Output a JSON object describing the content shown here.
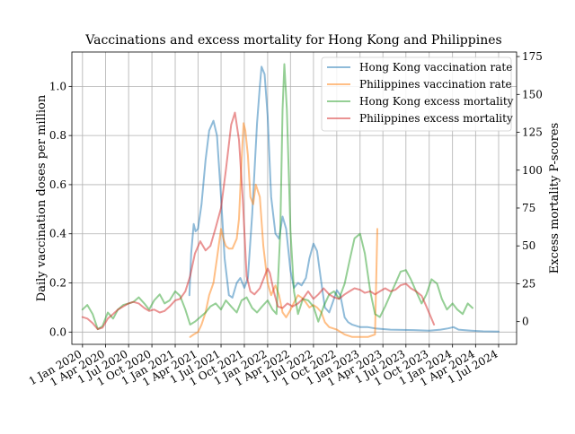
{
  "chart_data": {
    "type": "line",
    "title": "Vaccinations and excess mortality for Hong Kong and Philippines",
    "ylabel_left": "Daily vaccination doses per million",
    "ylabel_right": "Excess mortality P-scores",
    "xlabel": "",
    "grid": true,
    "legend_position": "top-right",
    "x_ticks": [
      "2020-01-01",
      "2020-04-01",
      "2020-07-01",
      "2020-10-01",
      "2021-01-01",
      "2021-04-01",
      "2021-07-01",
      "2021-10-01",
      "2022-01-01",
      "2022-04-01",
      "2022-07-01",
      "2022-10-01",
      "2023-01-01",
      "2023-04-01",
      "2023-07-01",
      "2023-10-01",
      "2024-01-01",
      "2024-04-01",
      "2024-07-01"
    ],
    "x_tick_labels": [
      "1 Jan 2020",
      "1 Apr 2020",
      "1 Jul 2020",
      "1 Oct 2020",
      "1 Jan 2021",
      "1 Apr 2021",
      "1 Jul 2021",
      "1 Oct 2021",
      "1 Jan 2022",
      "1 Apr 2022",
      "1 Jul 2022",
      "1 Oct 2022",
      "1 Jan 2023",
      "1 Apr 2023",
      "1 Jul 2023",
      "1 Oct 2023",
      "1 Jan 2024",
      "1 Apr 2024",
      "1 Jul 2024"
    ],
    "xlim": [
      "2019-11-20",
      "2024-09-10"
    ],
    "y_left": {
      "lim": [
        -0.05,
        1.14
      ],
      "ticks": [
        0.0,
        0.2,
        0.4,
        0.6,
        0.8,
        1.0
      ],
      "tick_labels": [
        "0.0",
        "0.2",
        "0.4",
        "0.6",
        "0.8",
        "1.0"
      ]
    },
    "y_right": {
      "lim": [
        -15,
        178
      ],
      "ticks": [
        0,
        25,
        50,
        75,
        100,
        125,
        150,
        175
      ],
      "tick_labels": [
        "0",
        "25",
        "50",
        "75",
        "100",
        "125",
        "150",
        "175"
      ]
    },
    "series": [
      {
        "name": "Hong Kong vaccination rate",
        "axis": "left",
        "color": "#1f77b4",
        "points": [
          [
            "2021-02-26",
            0.15
          ],
          [
            "2021-03-05",
            0.32
          ],
          [
            "2021-03-15",
            0.44
          ],
          [
            "2021-03-22",
            0.41
          ],
          [
            "2021-04-01",
            0.42
          ],
          [
            "2021-04-15",
            0.52
          ],
          [
            "2021-05-01",
            0.7
          ],
          [
            "2021-05-15",
            0.82
          ],
          [
            "2021-06-01",
            0.86
          ],
          [
            "2021-06-15",
            0.8
          ],
          [
            "2021-07-01",
            0.55
          ],
          [
            "2021-07-15",
            0.3
          ],
          [
            "2021-08-01",
            0.15
          ],
          [
            "2021-08-15",
            0.14
          ],
          [
            "2021-09-01",
            0.2
          ],
          [
            "2021-09-15",
            0.22
          ],
          [
            "2021-10-01",
            0.18
          ],
          [
            "2021-10-15",
            0.22
          ],
          [
            "2021-11-01",
            0.48
          ],
          [
            "2021-11-20",
            0.85
          ],
          [
            "2021-12-01",
            1.0
          ],
          [
            "2021-12-08",
            1.08
          ],
          [
            "2021-12-20",
            1.05
          ],
          [
            "2022-01-01",
            0.88
          ],
          [
            "2022-01-15",
            0.55
          ],
          [
            "2022-02-01",
            0.4
          ],
          [
            "2022-02-15",
            0.38
          ],
          [
            "2022-03-01",
            0.47
          ],
          [
            "2022-03-15",
            0.42
          ],
          [
            "2022-04-01",
            0.25
          ],
          [
            "2022-04-15",
            0.18
          ],
          [
            "2022-05-01",
            0.2
          ],
          [
            "2022-05-15",
            0.19
          ],
          [
            "2022-06-01",
            0.22
          ],
          [
            "2022-06-15",
            0.3
          ],
          [
            "2022-07-01",
            0.36
          ],
          [
            "2022-07-15",
            0.33
          ],
          [
            "2022-08-01",
            0.2
          ],
          [
            "2022-08-15",
            0.1
          ],
          [
            "2022-09-01",
            0.08
          ],
          [
            "2022-09-15",
            0.12
          ],
          [
            "2022-10-01",
            0.17
          ],
          [
            "2022-10-15",
            0.15
          ],
          [
            "2022-11-01",
            0.06
          ],
          [
            "2022-11-15",
            0.04
          ],
          [
            "2022-12-01",
            0.03
          ],
          [
            "2023-01-01",
            0.02
          ],
          [
            "2023-02-01",
            0.02
          ],
          [
            "2023-03-01",
            0.015
          ],
          [
            "2023-05-01",
            0.01
          ],
          [
            "2023-08-01",
            0.008
          ],
          [
            "2023-10-01",
            0.006
          ],
          [
            "2023-11-15",
            0.01
          ],
          [
            "2023-12-15",
            0.015
          ],
          [
            "2024-01-05",
            0.02
          ],
          [
            "2024-01-25",
            0.01
          ],
          [
            "2024-02-15",
            0.008
          ],
          [
            "2024-03-15",
            0.006
          ],
          [
            "2024-05-01",
            0.003
          ],
          [
            "2024-07-01",
            0.002
          ]
        ]
      },
      {
        "name": "Philippines vaccination rate",
        "axis": "left",
        "color": "#ff7f0e",
        "points": [
          [
            "2021-03-01",
            -0.02
          ],
          [
            "2021-03-15",
            -0.01
          ],
          [
            "2021-04-01",
            0.0
          ],
          [
            "2021-04-15",
            0.03
          ],
          [
            "2021-05-01",
            0.08
          ],
          [
            "2021-05-15",
            0.15
          ],
          [
            "2021-06-01",
            0.2
          ],
          [
            "2021-06-15",
            0.3
          ],
          [
            "2021-07-01",
            0.42
          ],
          [
            "2021-07-10",
            0.38
          ],
          [
            "2021-07-20",
            0.35
          ],
          [
            "2021-08-01",
            0.34
          ],
          [
            "2021-08-15",
            0.34
          ],
          [
            "2021-09-01",
            0.38
          ],
          [
            "2021-09-10",
            0.46
          ],
          [
            "2021-09-20",
            0.7
          ],
          [
            "2021-09-28",
            0.85
          ],
          [
            "2021-10-05",
            0.82
          ],
          [
            "2021-10-15",
            0.72
          ],
          [
            "2021-10-25",
            0.55
          ],
          [
            "2021-11-05",
            0.52
          ],
          [
            "2021-11-15",
            0.6
          ],
          [
            "2021-12-01",
            0.55
          ],
          [
            "2021-12-15",
            0.35
          ],
          [
            "2022-01-01",
            0.2
          ],
          [
            "2022-01-15",
            0.15
          ],
          [
            "2022-02-01",
            0.19
          ],
          [
            "2022-02-15",
            0.15
          ],
          [
            "2022-03-01",
            0.08
          ],
          [
            "2022-03-15",
            0.06
          ],
          [
            "2022-04-01",
            0.09
          ],
          [
            "2022-04-15",
            0.12
          ],
          [
            "2022-05-01",
            0.15
          ],
          [
            "2022-05-15",
            0.14
          ],
          [
            "2022-06-01",
            0.12
          ],
          [
            "2022-06-15",
            0.1
          ],
          [
            "2022-07-01",
            0.11
          ],
          [
            "2022-07-15",
            0.1
          ],
          [
            "2022-08-01",
            0.08
          ],
          [
            "2022-08-15",
            0.04
          ],
          [
            "2022-09-01",
            0.02
          ],
          [
            "2022-10-01",
            0.01
          ],
          [
            "2022-11-01",
            -0.01
          ],
          [
            "2022-12-01",
            -0.02
          ],
          [
            "2023-01-01",
            -0.02
          ],
          [
            "2023-02-01",
            -0.02
          ],
          [
            "2023-03-01",
            -0.01
          ],
          [
            "2023-03-10",
            0.42
          ]
        ]
      },
      {
        "name": "Hong Kong excess mortality",
        "axis": "right",
        "color": "#2ca02c",
        "points": [
          [
            "2020-01-01",
            8
          ],
          [
            "2020-01-20",
            11
          ],
          [
            "2020-02-10",
            5
          ],
          [
            "2020-03-01",
            -5
          ],
          [
            "2020-03-20",
            -3
          ],
          [
            "2020-04-10",
            6
          ],
          [
            "2020-05-01",
            2
          ],
          [
            "2020-05-20",
            8
          ],
          [
            "2020-06-10",
            11
          ],
          [
            "2020-07-01",
            12
          ],
          [
            "2020-07-20",
            13
          ],
          [
            "2020-08-10",
            16
          ],
          [
            "2020-09-01",
            12
          ],
          [
            "2020-09-20",
            8
          ],
          [
            "2020-10-10",
            14
          ],
          [
            "2020-11-01",
            18
          ],
          [
            "2020-11-20",
            12
          ],
          [
            "2020-12-10",
            14
          ],
          [
            "2021-01-01",
            20
          ],
          [
            "2021-01-20",
            17
          ],
          [
            "2021-02-10",
            8
          ],
          [
            "2021-03-01",
            -2
          ],
          [
            "2021-03-20",
            0
          ],
          [
            "2021-04-10",
            3
          ],
          [
            "2021-05-01",
            6
          ],
          [
            "2021-05-20",
            10
          ],
          [
            "2021-06-10",
            12
          ],
          [
            "2021-07-01",
            8
          ],
          [
            "2021-07-20",
            14
          ],
          [
            "2021-08-10",
            10
          ],
          [
            "2021-09-01",
            6
          ],
          [
            "2021-09-20",
            14
          ],
          [
            "2021-10-10",
            16
          ],
          [
            "2021-11-01",
            9
          ],
          [
            "2021-11-20",
            6
          ],
          [
            "2021-12-10",
            10
          ],
          [
            "2022-01-01",
            14
          ],
          [
            "2022-01-20",
            8
          ],
          [
            "2022-02-05",
            5
          ],
          [
            "2022-02-20",
            60
          ],
          [
            "2022-03-01",
            140
          ],
          [
            "2022-03-08",
            170
          ],
          [
            "2022-03-18",
            140
          ],
          [
            "2022-04-01",
            60
          ],
          [
            "2022-04-15",
            20
          ],
          [
            "2022-05-01",
            5
          ],
          [
            "2022-05-20",
            15
          ],
          [
            "2022-06-10",
            14
          ],
          [
            "2022-07-01",
            10
          ],
          [
            "2022-07-20",
            0
          ],
          [
            "2022-08-10",
            10
          ],
          [
            "2022-09-01",
            18
          ],
          [
            "2022-09-20",
            20
          ],
          [
            "2022-10-10",
            15
          ],
          [
            "2022-11-01",
            25
          ],
          [
            "2022-11-20",
            40
          ],
          [
            "2022-12-10",
            55
          ],
          [
            "2023-01-01",
            58
          ],
          [
            "2023-01-20",
            45
          ],
          [
            "2023-02-10",
            20
          ],
          [
            "2023-03-01",
            5
          ],
          [
            "2023-03-20",
            3
          ],
          [
            "2023-04-10",
            10
          ],
          [
            "2023-05-01",
            18
          ],
          [
            "2023-05-20",
            25
          ],
          [
            "2023-06-10",
            33
          ],
          [
            "2023-07-01",
            34
          ],
          [
            "2023-07-20",
            28
          ],
          [
            "2023-08-10",
            20
          ],
          [
            "2023-09-01",
            12
          ],
          [
            "2023-09-20",
            18
          ],
          [
            "2023-10-10",
            28
          ],
          [
            "2023-11-01",
            25
          ],
          [
            "2023-11-20",
            15
          ],
          [
            "2023-12-10",
            8
          ],
          [
            "2024-01-01",
            12
          ],
          [
            "2024-01-20",
            8
          ],
          [
            "2024-02-10",
            5
          ],
          [
            "2024-03-01",
            12
          ],
          [
            "2024-03-20",
            9
          ]
        ]
      },
      {
        "name": "Philippines excess mortality",
        "axis": "right",
        "color": "#d62728",
        "points": [
          [
            "2020-01-01",
            3
          ],
          [
            "2020-01-20",
            2
          ],
          [
            "2020-02-10",
            -1
          ],
          [
            "2020-03-01",
            -5
          ],
          [
            "2020-03-20",
            -4
          ],
          [
            "2020-04-10",
            2
          ],
          [
            "2020-05-01",
            5
          ],
          [
            "2020-05-20",
            8
          ],
          [
            "2020-06-10",
            10
          ],
          [
            "2020-07-01",
            12
          ],
          [
            "2020-07-20",
            13
          ],
          [
            "2020-08-10",
            12
          ],
          [
            "2020-09-01",
            9
          ],
          [
            "2020-09-20",
            7
          ],
          [
            "2020-10-10",
            8
          ],
          [
            "2020-11-01",
            6
          ],
          [
            "2020-11-20",
            7
          ],
          [
            "2020-12-10",
            10
          ],
          [
            "2021-01-01",
            14
          ],
          [
            "2021-01-20",
            15
          ],
          [
            "2021-02-10",
            20
          ],
          [
            "2021-03-01",
            30
          ],
          [
            "2021-03-20",
            45
          ],
          [
            "2021-04-10",
            53
          ],
          [
            "2021-05-01",
            47
          ],
          [
            "2021-05-20",
            50
          ],
          [
            "2021-06-10",
            62
          ],
          [
            "2021-07-01",
            75
          ],
          [
            "2021-07-20",
            100
          ],
          [
            "2021-08-10",
            130
          ],
          [
            "2021-08-25",
            138
          ],
          [
            "2021-09-10",
            120
          ],
          [
            "2021-09-25",
            80
          ],
          [
            "2021-10-10",
            30
          ],
          [
            "2021-10-25",
            20
          ],
          [
            "2021-11-10",
            18
          ],
          [
            "2021-12-01",
            22
          ],
          [
            "2021-12-20",
            30
          ],
          [
            "2022-01-01",
            35
          ],
          [
            "2022-01-10",
            32
          ],
          [
            "2022-01-25",
            20
          ],
          [
            "2022-02-10",
            10
          ],
          [
            "2022-03-01",
            9
          ],
          [
            "2022-03-20",
            12
          ],
          [
            "2022-04-10",
            10
          ],
          [
            "2022-05-01",
            12
          ],
          [
            "2022-05-20",
            15
          ],
          [
            "2022-06-10",
            20
          ],
          [
            "2022-07-01",
            15
          ],
          [
            "2022-07-20",
            18
          ],
          [
            "2022-08-10",
            22
          ],
          [
            "2022-09-01",
            18
          ],
          [
            "2022-09-20",
            16
          ],
          [
            "2022-10-10",
            15
          ],
          [
            "2022-11-01",
            18
          ],
          [
            "2022-11-20",
            20
          ],
          [
            "2022-12-10",
            22
          ],
          [
            "2023-01-01",
            21
          ],
          [
            "2023-01-20",
            19
          ],
          [
            "2023-02-10",
            20
          ],
          [
            "2023-03-01",
            18
          ],
          [
            "2023-03-20",
            20
          ],
          [
            "2023-04-10",
            22
          ],
          [
            "2023-05-01",
            20
          ],
          [
            "2023-05-20",
            21
          ],
          [
            "2023-06-10",
            24
          ],
          [
            "2023-07-01",
            25
          ],
          [
            "2023-07-20",
            22
          ],
          [
            "2023-08-10",
            20
          ],
          [
            "2023-09-01",
            17
          ],
          [
            "2023-09-20",
            10
          ],
          [
            "2023-10-10",
            2
          ],
          [
            "2023-10-20",
            -2
          ]
        ]
      }
    ]
  }
}
